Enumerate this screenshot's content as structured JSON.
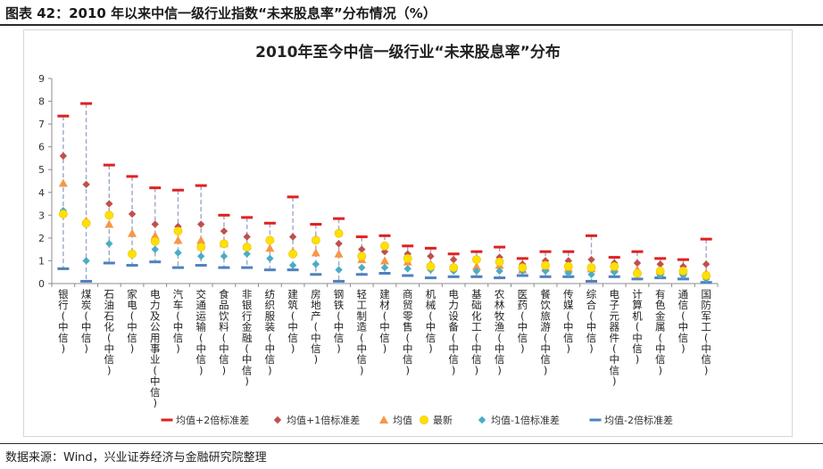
{
  "figure_caption": "图表 42：2010 年以来中信一级行业指数“未来股息率”分布情况（%）",
  "source_note": "数据来源：Wind，兴业证券经济与金融研究院整理",
  "chart_data": {
    "type": "scatter",
    "title": "2010年至今中信一级行业“未来股息率”分布",
    "xlabel": "",
    "ylabel": "",
    "ylim": [
      0,
      9
    ],
    "yticks": [
      0,
      1,
      2,
      3,
      4,
      5,
      6,
      7,
      8,
      9
    ],
    "grid": false,
    "legend_position": "bottom",
    "categories": [
      "银行(中信)",
      "煤炭(中信)",
      "石油石化(中信)",
      "家电(中信)",
      "电力及公用事业(中信)",
      "汽车(中信)",
      "交通运输(中信)",
      "食品饮料(中信)",
      "非银行金融(中信)",
      "纺织服装(中信)",
      "建筑(中信)",
      "房地产(中信)",
      "钢铁(中信)",
      "轻工制造(中信)",
      "建材(中信)",
      "商贸零售(中信)",
      "机械(中信)",
      "电力设备(中信)",
      "基础化工(中信)",
      "农林牧渔(中信)",
      "医药(中信)",
      "餐饮旅游(中信)",
      "传媒(中信)",
      "综合(中信)",
      "电子元器件(中信)",
      "计算机(中信)",
      "有色金属(中信)",
      "通信(中信)",
      "国防军工(中信)"
    ],
    "series": [
      {
        "name": "均值+2倍标准差",
        "marker": "dash",
        "color": "#e02020",
        "values": [
          7.35,
          7.9,
          5.2,
          4.7,
          4.2,
          4.1,
          4.3,
          3.0,
          2.9,
          2.65,
          3.8,
          2.6,
          2.85,
          2.05,
          2.1,
          1.65,
          1.55,
          1.3,
          1.4,
          1.6,
          1.1,
          1.4,
          1.4,
          2.1,
          1.15,
          1.4,
          1.1,
          1.05,
          1.95
        ]
      },
      {
        "name": "均值+1倍标准差",
        "marker": "diamond",
        "color": "#c0504d",
        "values": [
          5.6,
          4.35,
          3.5,
          3.05,
          2.6,
          2.5,
          2.6,
          2.3,
          2.05,
          1.9,
          2.05,
          1.95,
          1.75,
          1.5,
          1.4,
          1.3,
          1.2,
          1.05,
          1.05,
          1.15,
          0.85,
          1.0,
          1.0,
          1.05,
          0.9,
          0.9,
          0.85,
          0.75,
          0.85
        ]
      },
      {
        "name": "均值",
        "marker": "triangle",
        "color": "#f79646",
        "values": [
          4.4,
          2.75,
          2.6,
          2.2,
          2.1,
          1.9,
          1.9,
          1.75,
          1.65,
          1.55,
          1.4,
          1.35,
          1.3,
          1.05,
          1.0,
          0.95,
          0.85,
          0.75,
          0.75,
          0.8,
          0.6,
          0.7,
          0.65,
          0.65,
          0.65,
          0.6,
          0.55,
          0.55,
          0.45
        ]
      },
      {
        "name": "最新",
        "marker": "circle",
        "color": "#ffe000",
        "values": [
          3.05,
          2.65,
          3.0,
          1.3,
          1.85,
          2.3,
          1.6,
          1.75,
          1.6,
          1.9,
          1.3,
          1.9,
          2.2,
          1.2,
          1.65,
          1.1,
          0.75,
          0.7,
          1.05,
          0.95,
          0.7,
          0.8,
          0.75,
          0.7,
          0.75,
          0.45,
          0.55,
          0.55,
          0.35
        ]
      },
      {
        "name": "均值-1倍标准差",
        "marker": "diamond",
        "color": "#4bacc6",
        "values": [
          3.2,
          1.0,
          1.75,
          1.35,
          1.5,
          1.35,
          1.2,
          1.2,
          1.3,
          1.1,
          0.8,
          0.85,
          0.6,
          0.7,
          0.7,
          0.65,
          0.6,
          0.55,
          0.55,
          0.55,
          0.55,
          0.55,
          0.45,
          0.4,
          0.5,
          0.4,
          0.35,
          0.35,
          0.2
        ]
      },
      {
        "name": "均值-2倍标准差",
        "marker": "dash",
        "color": "#4f81bd",
        "values": [
          0.65,
          0.1,
          0.9,
          0.8,
          0.95,
          0.7,
          0.8,
          0.7,
          0.7,
          0.6,
          0.6,
          0.4,
          0.1,
          0.4,
          0.45,
          0.35,
          0.25,
          0.3,
          0.3,
          0.25,
          0.35,
          0.3,
          0.3,
          0.1,
          0.3,
          0.2,
          0.25,
          0.2,
          0.05
        ]
      }
    ]
  }
}
